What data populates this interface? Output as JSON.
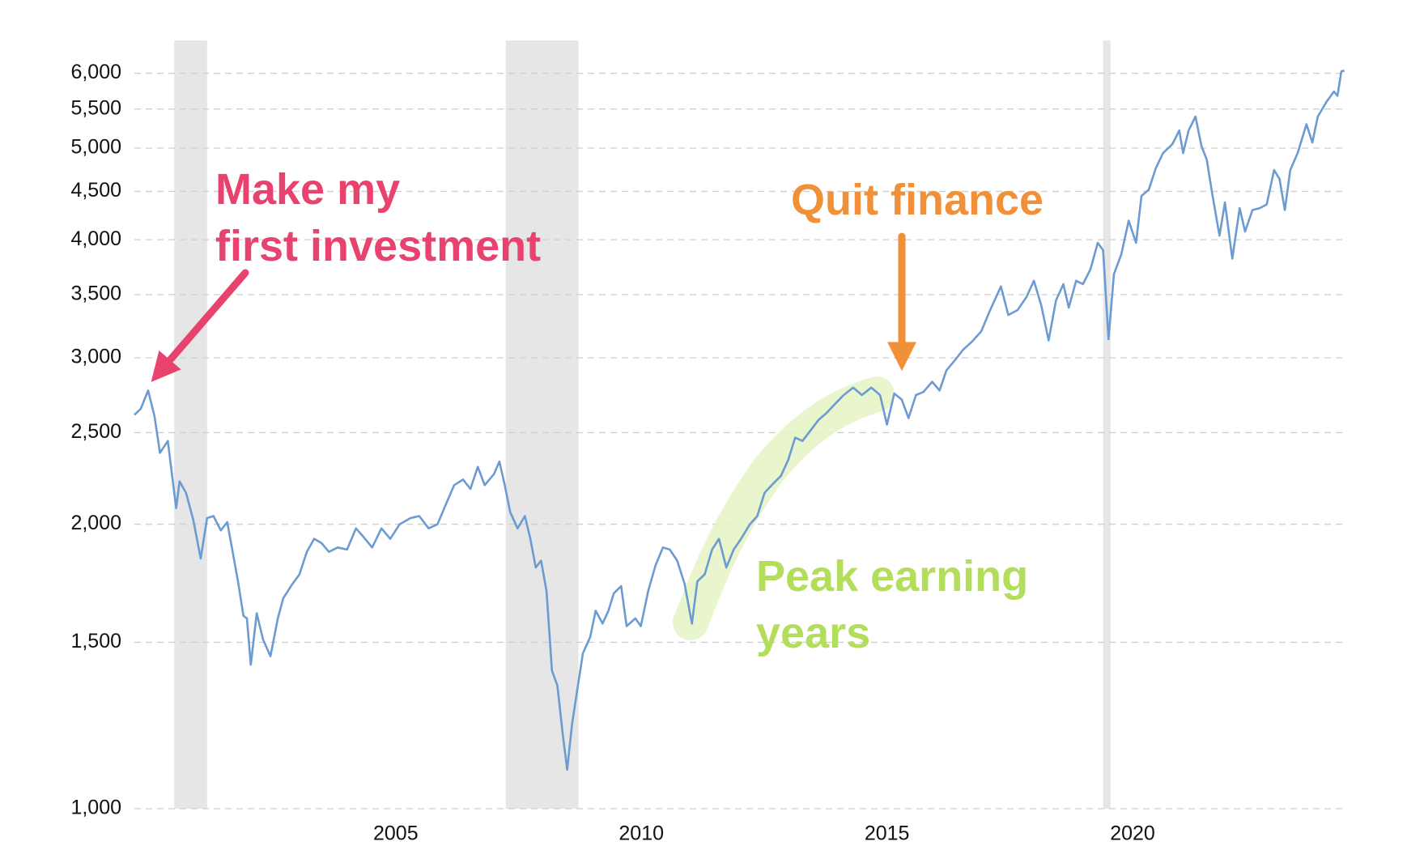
{
  "chart_data": {
    "type": "line",
    "color": "#6b9bd0",
    "log_scale": true,
    "grid": true,
    "xlim": [
      1999.68,
      2024.35
    ],
    "xticks": [
      2005,
      2010,
      2015,
      2020
    ],
    "ylim": [
      1000,
      6500
    ],
    "yticks": [
      {
        "value": 1000,
        "label": "1,000"
      },
      {
        "value": 1500,
        "label": "1,500"
      },
      {
        "value": 2000,
        "label": "2,000"
      },
      {
        "value": 2500,
        "label": "2,500"
      },
      {
        "value": 3000,
        "label": "3,000"
      },
      {
        "value": 3500,
        "label": "3,500"
      },
      {
        "value": 4000,
        "label": "4,000"
      },
      {
        "value": 4500,
        "label": "4,500"
      },
      {
        "value": 5000,
        "label": "5,000"
      },
      {
        "value": 5500,
        "label": "5,500"
      },
      {
        "value": 6000,
        "label": "6,000"
      }
    ],
    "recession_bands": [
      [
        2000.49,
        2001.16
      ],
      [
        2007.24,
        2008.72
      ],
      [
        2019.4,
        2019.55
      ]
    ],
    "band_color": "#e6e6e6",
    "x": [
      1999.68,
      1999.81,
      1999.96,
      2000.09,
      2000.2,
      2000.36,
      2000.53,
      2000.6,
      2000.73,
      2000.88,
      2001.03,
      2001.16,
      2001.29,
      2001.44,
      2001.57,
      2001.68,
      2001.79,
      2001.9,
      2001.97,
      2002.05,
      2002.17,
      2002.3,
      2002.45,
      2002.6,
      2002.71,
      2002.9,
      2003.04,
      2003.19,
      2003.34,
      2003.49,
      2003.64,
      2003.82,
      2004.01,
      2004.19,
      2004.34,
      2004.52,
      2004.71,
      2004.89,
      2005.08,
      2005.3,
      2005.48,
      2005.67,
      2005.85,
      2006.04,
      2006.19,
      2006.37,
      2006.52,
      2006.67,
      2006.81,
      2007.0,
      2007.11,
      2007.22,
      2007.33,
      2007.48,
      2007.63,
      2007.74,
      2007.85,
      2007.96,
      2008.07,
      2008.18,
      2008.29,
      2008.4,
      2008.49,
      2008.59,
      2008.7,
      2008.81,
      2008.96,
      2009.07,
      2009.21,
      2009.33,
      2009.44,
      2009.59,
      2009.7,
      2009.88,
      2009.99,
      2010.14,
      2010.29,
      2010.44,
      2010.58,
      2010.73,
      2010.88,
      2011.03,
      2011.14,
      2011.29,
      2011.44,
      2011.58,
      2011.73,
      2011.88,
      2012.03,
      2012.21,
      2012.36,
      2012.51,
      2012.69,
      2012.84,
      2012.99,
      2013.13,
      2013.28,
      2013.46,
      2013.61,
      2013.76,
      2013.94,
      2014.12,
      2014.31,
      2014.49,
      2014.68,
      2014.86,
      2015.0,
      2015.15,
      2015.3,
      2015.44,
      2015.59,
      2015.74,
      2015.92,
      2016.07,
      2016.21,
      2016.4,
      2016.55,
      2016.73,
      2016.92,
      2017.1,
      2017.32,
      2017.47,
      2017.66,
      2017.84,
      2017.99,
      2018.14,
      2018.29,
      2018.44,
      2018.59,
      2018.7,
      2018.85,
      2018.99,
      2019.14,
      2019.29,
      2019.4,
      2019.51,
      2019.62,
      2019.77,
      2019.92,
      2020.07,
      2020.18,
      2020.33,
      2020.47,
      2020.62,
      2020.81,
      2020.95,
      2021.03,
      2021.14,
      2021.28,
      2021.4,
      2021.51,
      2021.62,
      2021.77,
      2021.88,
      2022.03,
      2022.18,
      2022.29,
      2022.44,
      2022.59,
      2022.73,
      2022.88,
      2022.99,
      2023.1,
      2023.21,
      2023.36,
      2023.54,
      2023.66,
      2023.77,
      2023.95,
      2024.1,
      2024.17,
      2024.25,
      2024.31
    ],
    "values": [
      2610,
      2650,
      2770,
      2600,
      2380,
      2450,
      2080,
      2220,
      2160,
      2020,
      1840,
      2030,
      2040,
      1970,
      2010,
      1870,
      1740,
      1600,
      1590,
      1420,
      1610,
      1510,
      1450,
      1590,
      1670,
      1730,
      1770,
      1870,
      1930,
      1910,
      1870,
      1890,
      1880,
      1980,
      1940,
      1890,
      1980,
      1930,
      2000,
      2030,
      2040,
      1980,
      2000,
      2110,
      2200,
      2230,
      2180,
      2300,
      2200,
      2260,
      2330,
      2200,
      2060,
      1980,
      2040,
      1930,
      1800,
      1830,
      1700,
      1400,
      1350,
      1200,
      1100,
      1230,
      1340,
      1460,
      1520,
      1620,
      1570,
      1620,
      1690,
      1720,
      1560,
      1590,
      1560,
      1700,
      1810,
      1890,
      1880,
      1830,
      1730,
      1570,
      1740,
      1770,
      1880,
      1930,
      1800,
      1880,
      1930,
      2000,
      2040,
      2160,
      2210,
      2250,
      2340,
      2470,
      2450,
      2520,
      2580,
      2620,
      2680,
      2740,
      2790,
      2740,
      2790,
      2740,
      2550,
      2750,
      2710,
      2590,
      2740,
      2760,
      2830,
      2770,
      2910,
      2990,
      3060,
      3120,
      3200,
      3370,
      3570,
      3330,
      3370,
      3480,
      3620,
      3410,
      3130,
      3450,
      3590,
      3390,
      3620,
      3590,
      3720,
      3970,
      3900,
      3140,
      3680,
      3860,
      4190,
      3970,
      4450,
      4520,
      4760,
      4940,
      5050,
      5220,
      4940,
      5220,
      5400,
      5030,
      4860,
      4480,
      4040,
      4380,
      3820,
      4320,
      4080,
      4300,
      4320,
      4360,
      4740,
      4640,
      4300,
      4740,
      4940,
      5300,
      5070,
      5400,
      5600,
      5740,
      5680,
      6030,
      6040
    ],
    "annotations": [
      {
        "text_lines": [
          "Make my",
          "first investment"
        ],
        "color": "#e8436e"
      },
      {
        "text_lines": [
          "Quit finance"
        ],
        "color": "#f0913a"
      },
      {
        "text_lines": [
          "Peak earning",
          "years"
        ],
        "color": "#b3de5c"
      }
    ]
  }
}
